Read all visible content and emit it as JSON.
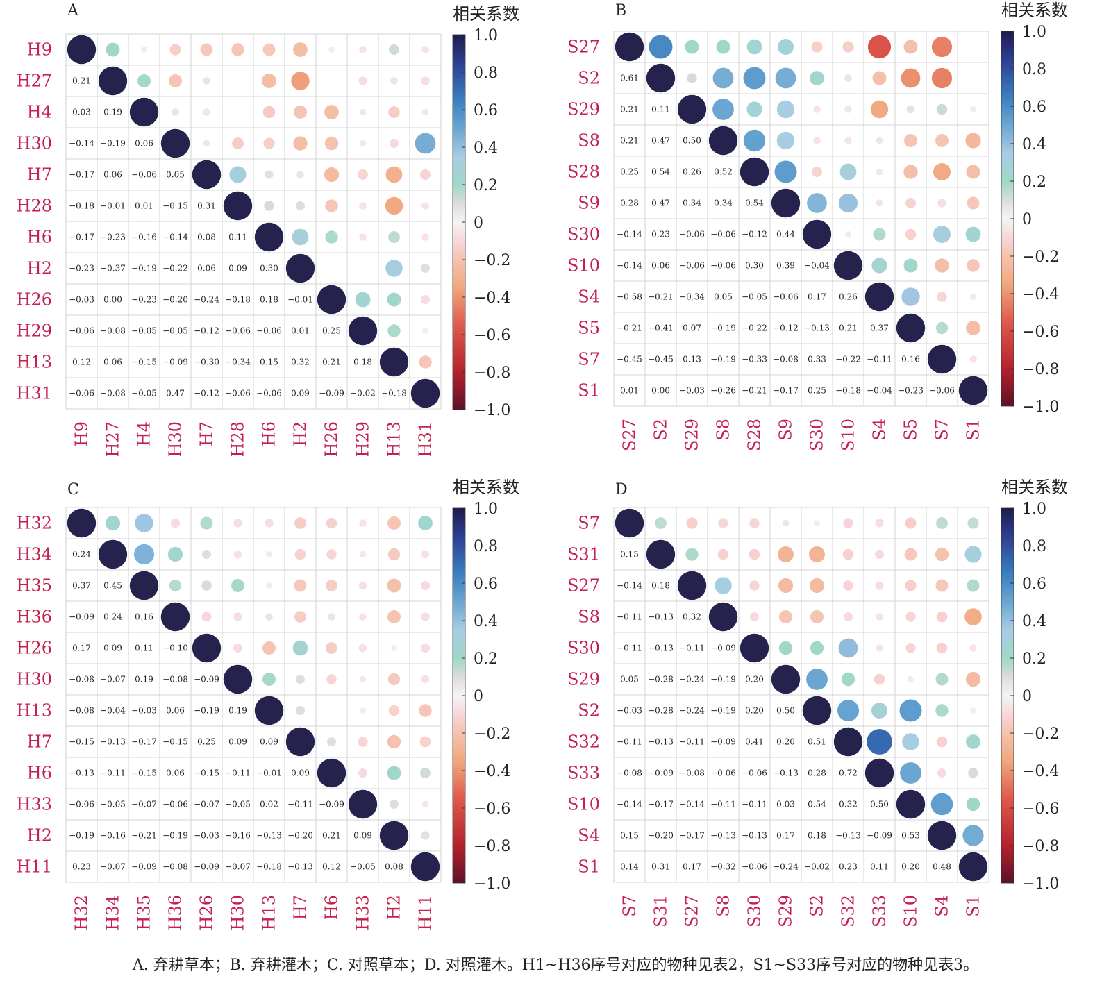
{
  "caption": "A. 弃耕草本；B. 弃耕灌木；C. 对照草本；D. 对照灌木。H1~H36序号对应的物种见表2，S1~S33序号对应的物种见表3。",
  "colors": {
    "label": "#c41f4e",
    "grid": "#d3d3d3",
    "text": "#222222"
  },
  "colorbar": {
    "title": "相关系数",
    "ticks": [
      "1.0",
      "0.8",
      "0.6",
      "0.4",
      "0.2",
      "0",
      "−0.2",
      "−0.4",
      "−0.6",
      "−0.8",
      "−1.0"
    ],
    "stops": [
      {
        "v": 1.0,
        "c": "#1f1b4d"
      },
      {
        "v": 0.85,
        "c": "#2d3f91"
      },
      {
        "v": 0.65,
        "c": "#3b7fbf"
      },
      {
        "v": 0.5,
        "c": "#6aa6d1"
      },
      {
        "v": 0.35,
        "c": "#a9cbe3"
      },
      {
        "v": 0.2,
        "c": "#9fd8c8"
      },
      {
        "v": 0.1,
        "c": "#dcdcdc"
      },
      {
        "v": 0.0,
        "c": "#f4f4f4"
      },
      {
        "v": -0.1,
        "c": "#f7d7da"
      },
      {
        "v": -0.2,
        "c": "#f5c2ae"
      },
      {
        "v": -0.35,
        "c": "#f0a77e"
      },
      {
        "v": -0.55,
        "c": "#de5a4c"
      },
      {
        "v": -0.8,
        "c": "#b3222e"
      },
      {
        "v": -1.0,
        "c": "#5c1127"
      }
    ]
  },
  "chart_data": [
    {
      "type": "heatmap",
      "panel": "A",
      "labels": [
        "H9",
        "H27",
        "H4",
        "H30",
        "H7",
        "H28",
        "H6",
        "H2",
        "H26",
        "H29",
        "H13",
        "H31"
      ],
      "lower": [
        [],
        [
          "0.21"
        ],
        [
          "0.03",
          "0.19"
        ],
        [
          "−0.14",
          "−0.19",
          "0.06"
        ],
        [
          "−0.17",
          "0.06",
          "−0.06",
          "0.05"
        ],
        [
          "−0.18",
          "−0.01",
          "0.01",
          "−0.15",
          "0.31"
        ],
        [
          "−0.17",
          "−0.23",
          "−0.16",
          "−0.14",
          "0.08",
          "0.11"
        ],
        [
          "−0.23",
          "−0.37",
          "−0.19",
          "−0.22",
          "0.06",
          "0.09",
          "0.30"
        ],
        [
          "−0.03",
          "0.00",
          "−0.23",
          "−0.20",
          "−0.24",
          "−0.18",
          "0.18",
          "−0.01"
        ],
        [
          "−0.06",
          "−0.08",
          "−0.05",
          "−0.05",
          "−0.12",
          "−0.06",
          "−0.06",
          "0.01",
          "0.25"
        ],
        [
          "0.12",
          "0.06",
          "−0.15",
          "−0.09",
          "−0.30",
          "−0.34",
          "0.15",
          "0.32",
          "0.21",
          "0.18"
        ],
        [
          "−0.06",
          "−0.08",
          "−0.05",
          "0.47",
          "−0.12",
          "−0.06",
          "−0.06",
          "0.09",
          "−0.09",
          "−0.02",
          "−0.18"
        ]
      ]
    },
    {
      "type": "heatmap",
      "panel": "B",
      "labels": [
        "S27",
        "S2",
        "S29",
        "S8",
        "S28",
        "S9",
        "S30",
        "S10",
        "S4",
        "S5",
        "S7",
        "S1"
      ],
      "lower": [
        [],
        [
          "0.61"
        ],
        [
          "0.21",
          "0.11"
        ],
        [
          "0.21",
          "0.47",
          "0.50"
        ],
        [
          "0.25",
          "0.54",
          "0.26",
          "0.52"
        ],
        [
          "0.28",
          "0.47",
          "0.34",
          "0.34",
          "0.54"
        ],
        [
          "−0.14",
          "0.23",
          "−0.06",
          "−0.06",
          "−0.12",
          "0.44"
        ],
        [
          "−0.14",
          "0.06",
          "−0.06",
          "−0.06",
          "0.30",
          "0.39",
          "−0.04"
        ],
        [
          "−0.58",
          "−0.21",
          "−0.34",
          "0.05",
          "−0.05",
          "−0.06",
          "0.17",
          "0.26"
        ],
        [
          "−0.21",
          "−0.41",
          "0.07",
          "−0.19",
          "−0.22",
          "−0.12",
          "−0.13",
          "0.21",
          "0.37"
        ],
        [
          "−0.45",
          "−0.45",
          "0.13",
          "−0.19",
          "−0.33",
          "−0.08",
          "0.33",
          "−0.22",
          "−0.11",
          "0.16"
        ],
        [
          "0.01",
          "0.00",
          "−0.03",
          "−0.26",
          "−0.21",
          "−0.17",
          "0.25",
          "−0.18",
          "−0.04",
          "−0.23",
          "−0.06"
        ]
      ]
    },
    {
      "type": "heatmap",
      "panel": "C",
      "labels": [
        "H32",
        "H34",
        "H35",
        "H36",
        "H26",
        "H30",
        "H13",
        "H7",
        "H6",
        "H33",
        "H2",
        "H11"
      ],
      "lower": [
        [],
        [
          "0.24"
        ],
        [
          "0.37",
          "0.45"
        ],
        [
          "−0.09",
          "0.24",
          "0.16"
        ],
        [
          "0.17",
          "0.09",
          "0.11",
          "−0.10"
        ],
        [
          "−0.08",
          "−0.07",
          "0.19",
          "−0.08",
          "−0.09"
        ],
        [
          "−0.08",
          "−0.04",
          "−0.03",
          "0.06",
          "−0.19",
          "0.19"
        ],
        [
          "−0.15",
          "−0.13",
          "−0.17",
          "−0.15",
          "0.25",
          "0.09",
          "0.09"
        ],
        [
          "−0.13",
          "−0.11",
          "−0.15",
          "0.06",
          "−0.15",
          "−0.11",
          "−0.01",
          "0.09"
        ],
        [
          "−0.06",
          "−0.05",
          "−0.07",
          "−0.06",
          "−0.07",
          "−0.05",
          "0.02",
          "−0.11",
          "−0.09"
        ],
        [
          "−0.19",
          "−0.16",
          "−0.21",
          "−0.19",
          "−0.03",
          "−0.16",
          "−0.13",
          "−0.20",
          "0.21",
          "0.09"
        ],
        [
          "0.23",
          "−0.07",
          "−0.09",
          "−0.08",
          "−0.09",
          "−0.07",
          "−0.18",
          "−0.13",
          "0.12",
          "−0.05",
          "0.08"
        ]
      ]
    },
    {
      "type": "heatmap",
      "panel": "D",
      "labels": [
        "S7",
        "S31",
        "S27",
        "S8",
        "S30",
        "S29",
        "S2",
        "S32",
        "S33",
        "S10",
        "S4",
        "S1"
      ],
      "lower": [
        [],
        [
          "0.15"
        ],
        [
          "−0.14",
          "0.18"
        ],
        [
          "−0.11",
          "−0.13",
          "0.32"
        ],
        [
          "−0.11",
          "−0.13",
          "−0.11",
          "−0.09"
        ],
        [
          "0.05",
          "−0.28",
          "−0.24",
          "−0.19",
          "0.20"
        ],
        [
          "−0.03",
          "−0.28",
          "−0.24",
          "−0.19",
          "0.20",
          "0.50"
        ],
        [
          "−0.11",
          "−0.13",
          "−0.11",
          "−0.09",
          "0.41",
          "0.20",
          "0.51"
        ],
        [
          "−0.08",
          "−0.09",
          "−0.08",
          "−0.06",
          "−0.06",
          "−0.13",
          "0.28",
          "0.72"
        ],
        [
          "−0.14",
          "−0.17",
          "−0.14",
          "−0.11",
          "−0.11",
          "0.03",
          "0.54",
          "0.32",
          "0.50"
        ],
        [
          "0.15",
          "−0.20",
          "−0.17",
          "−0.13",
          "−0.13",
          "0.17",
          "0.18",
          "−0.13",
          "−0.09",
          "0.53"
        ],
        [
          "0.14",
          "0.31",
          "0.17",
          "−0.32",
          "−0.06",
          "−0.24",
          "−0.02",
          "0.23",
          "0.11",
          "0.20",
          "0.48"
        ]
      ]
    }
  ]
}
